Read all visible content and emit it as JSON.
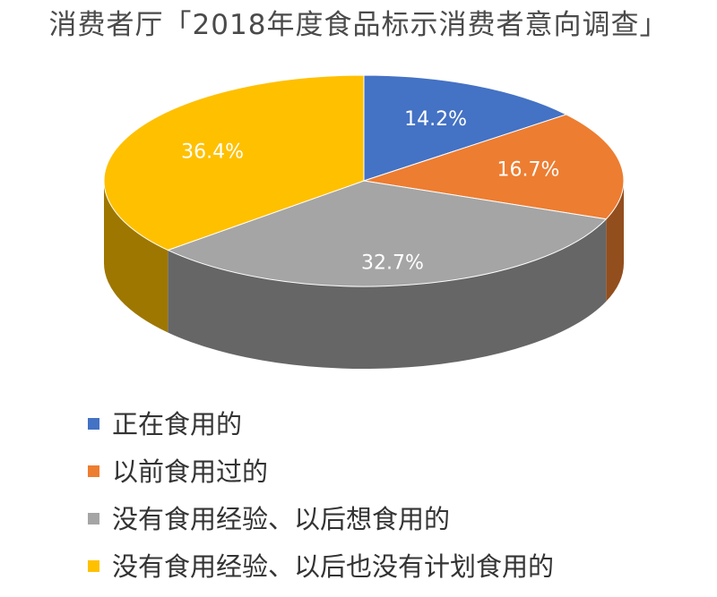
{
  "title": "消费者厅「2018年度食品标示消费者意向调查」",
  "chart_data": {
    "type": "pie",
    "title": "消费者厅「2018年度食品标示消费者意向调查」",
    "slices": [
      {
        "name": "正在食用的",
        "value": 14.2,
        "label": "14.2%",
        "color": "#4472C4"
      },
      {
        "name": "以前食用过的",
        "value": 16.7,
        "label": "16.7%",
        "color": "#ED7D31"
      },
      {
        "name": "没有食用经验、以后想食用的",
        "value": 32.7,
        "label": "32.7%",
        "color": "#A5A5A5"
      },
      {
        "name": "没有食用经验、以后也没有计划食用的",
        "value": 36.4,
        "label": "36.4%",
        "color": "#FFC000"
      }
    ],
    "legend_position": "bottom",
    "style": "3d"
  }
}
